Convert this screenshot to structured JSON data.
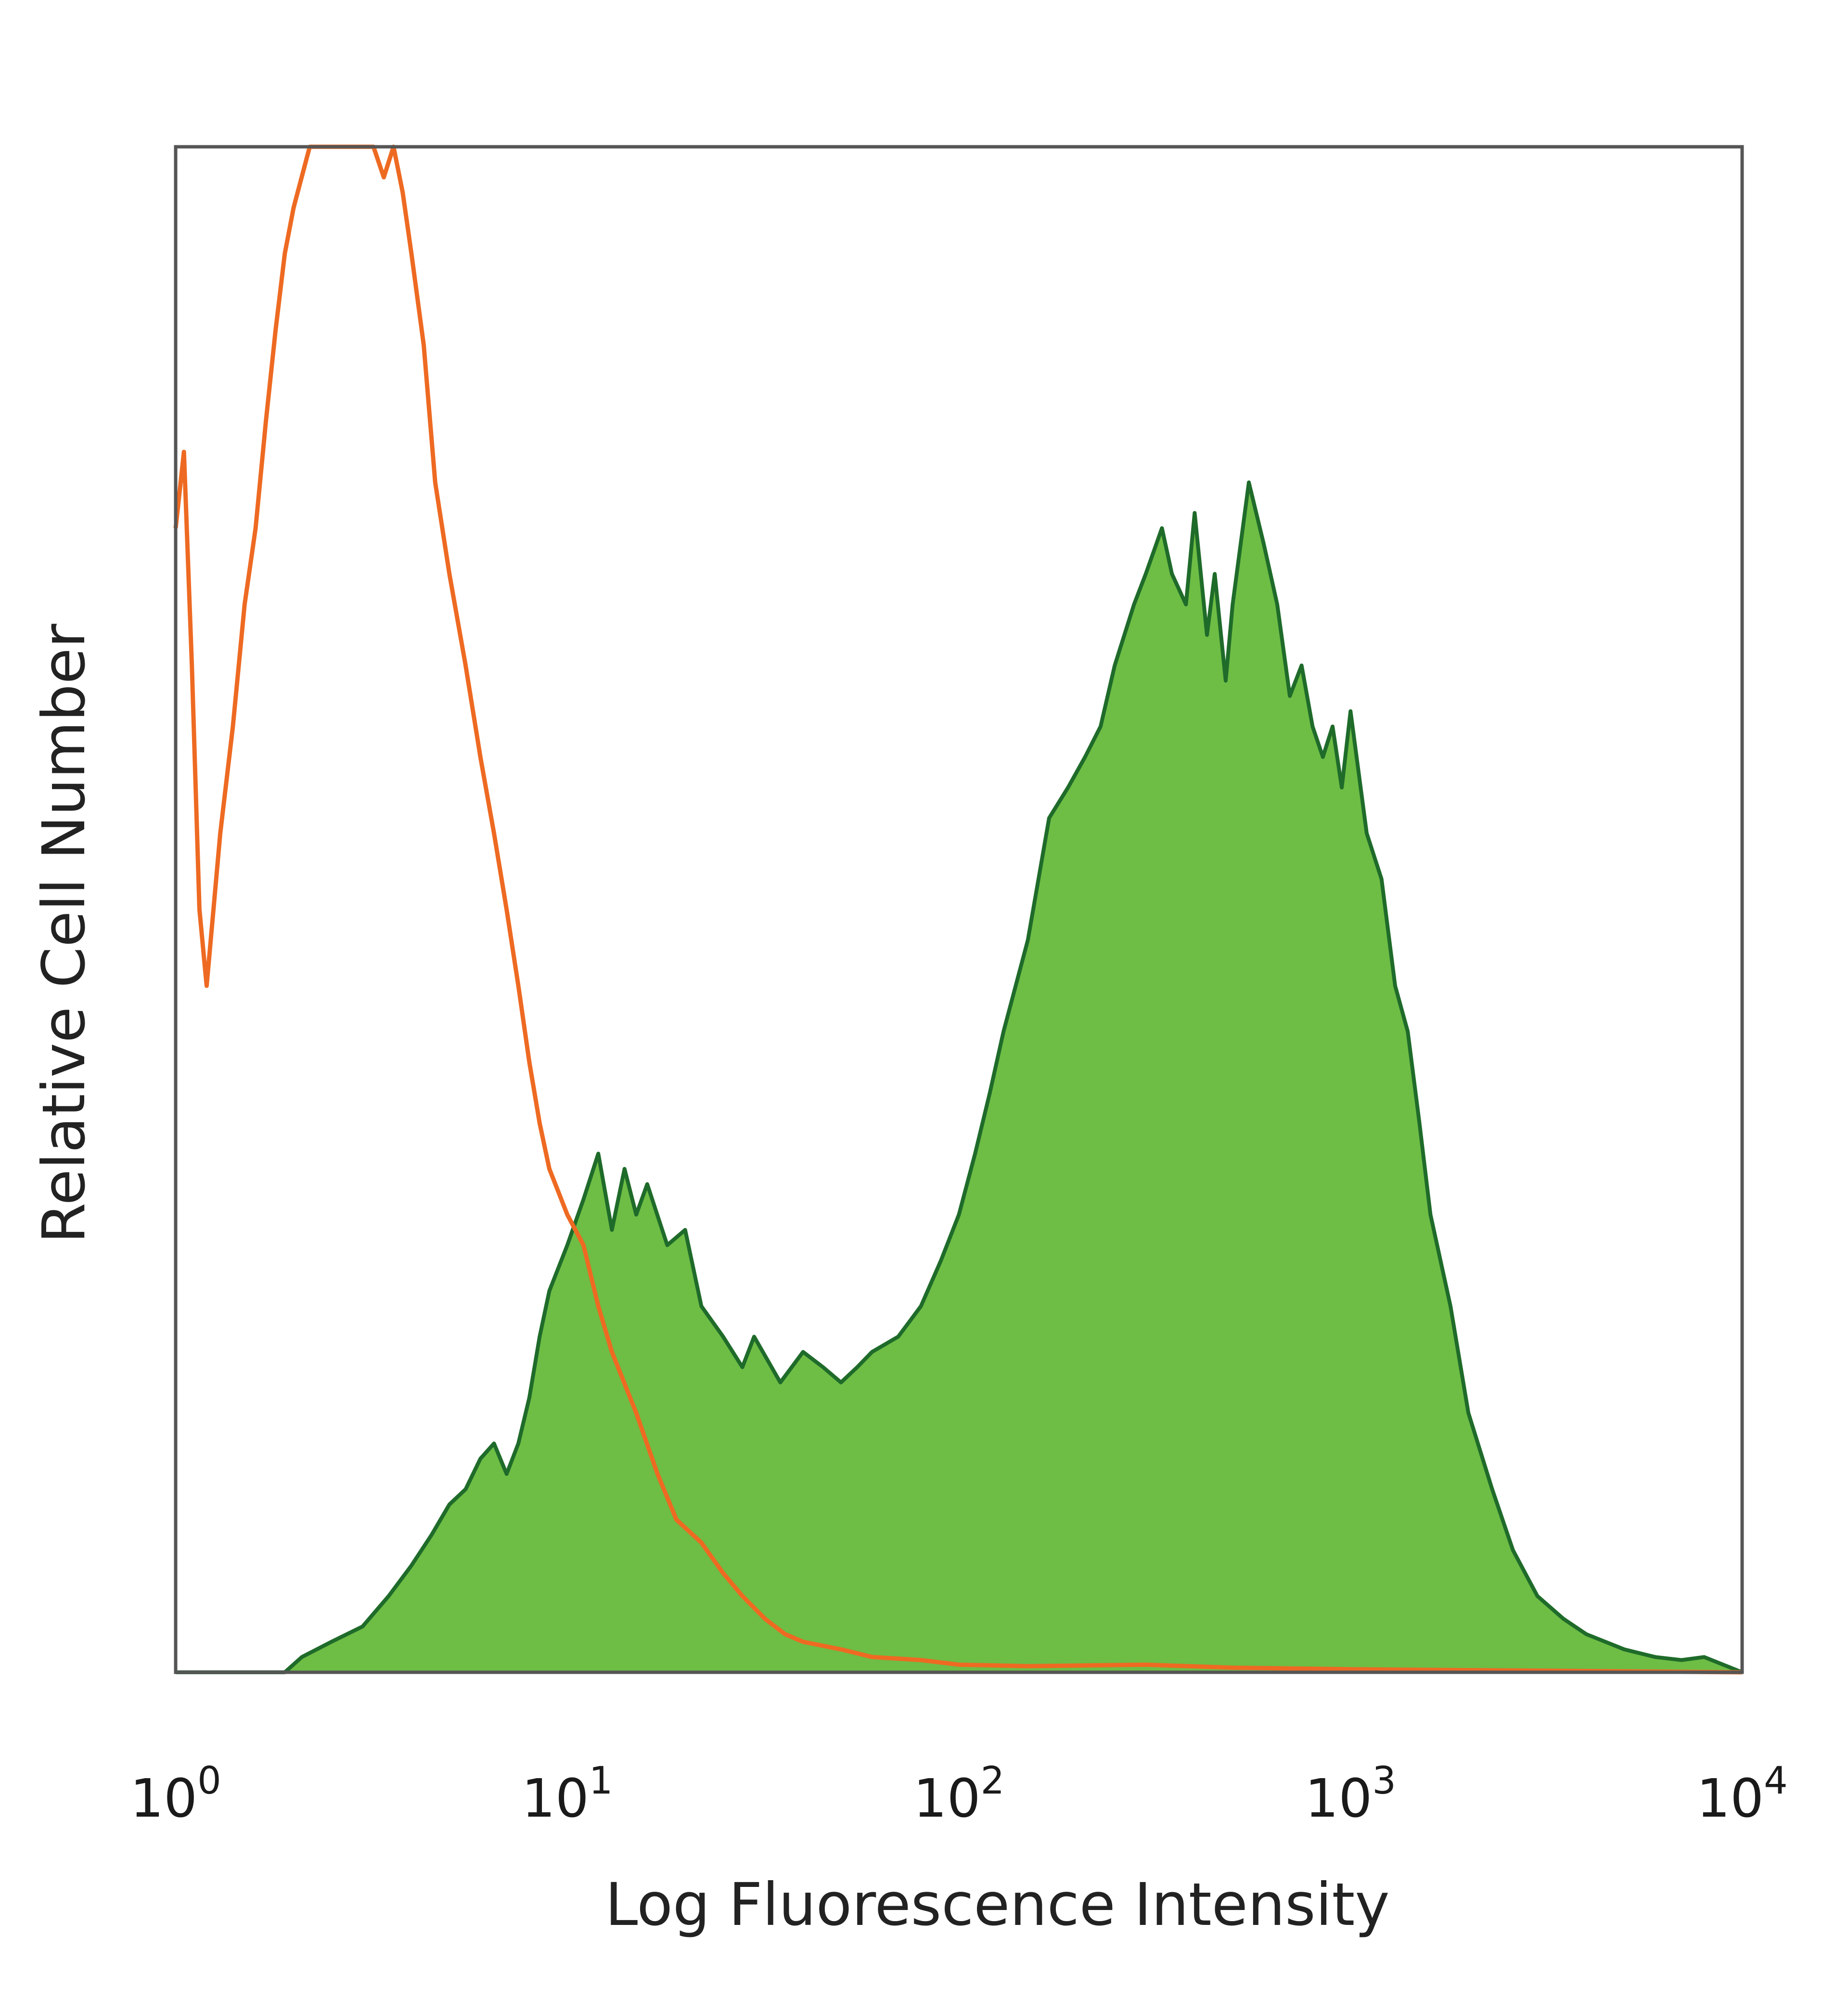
{
  "chart_data": {
    "type": "area",
    "title": "",
    "xlabel": "Log Fluorescence Intensity",
    "ylabel": "Relative Cell Number",
    "x_scale": "log",
    "xlim": [
      1,
      10000
    ],
    "ylim": [
      0,
      1
    ],
    "grid": false,
    "legend": "none",
    "x_ticks": [
      {
        "base": "10",
        "exp": "0",
        "value": 1
      },
      {
        "base": "10",
        "exp": "1",
        "value": 10
      },
      {
        "base": "10",
        "exp": "2",
        "value": 100
      },
      {
        "base": "10",
        "exp": "3",
        "value": 1000
      },
      {
        "base": "10",
        "exp": "4",
        "value": 10000
      }
    ],
    "series": [
      {
        "style": "outline",
        "color": "#ee6a22",
        "x": [
          1.0,
          1.05,
          1.1,
          1.15,
          1.2,
          1.3,
          1.4,
          1.5,
          1.6,
          1.7,
          1.8,
          1.9,
          2.0,
          2.2,
          2.4,
          2.6,
          2.8,
          3.0,
          3.2,
          3.4,
          3.6,
          3.8,
          4.0,
          4.3,
          4.6,
          5.0,
          5.5,
          6.0,
          6.5,
          7.0,
          7.5,
          8.0,
          8.5,
          9.0,
          10.0,
          11.0,
          12.0,
          13.0,
          15.0,
          17.0,
          19.0,
          22.0,
          25.0,
          28.0,
          32.0,
          36.0,
          40.0,
          50.0,
          60.0,
          80.0,
          100.0,
          150.0,
          300.0,
          500.0,
          1000.0,
          10000.0
        ],
        "values": [
          0.75,
          0.8,
          0.66,
          0.5,
          0.45,
          0.55,
          0.62,
          0.7,
          0.75,
          0.82,
          0.88,
          0.93,
          0.96,
          1.0,
          1.0,
          1.0,
          1.0,
          1.0,
          1.0,
          0.98,
          1.0,
          0.97,
          0.93,
          0.87,
          0.78,
          0.72,
          0.66,
          0.6,
          0.55,
          0.5,
          0.45,
          0.4,
          0.36,
          0.33,
          0.3,
          0.28,
          0.24,
          0.21,
          0.17,
          0.13,
          0.1,
          0.085,
          0.065,
          0.05,
          0.035,
          0.025,
          0.02,
          0.015,
          0.01,
          0.008,
          0.005,
          0.004,
          0.005,
          0.003,
          0.002,
          0.0
        ]
      },
      {
        "style": "filled",
        "color": "#6ebd45",
        "x": [
          1.0,
          1.5,
          1.9,
          2.1,
          2.5,
          3.0,
          3.5,
          4.0,
          4.5,
          5.0,
          5.5,
          6.0,
          6.5,
          7.0,
          7.5,
          8.0,
          8.5,
          9.0,
          10.0,
          11.0,
          12.0,
          13.0,
          14.0,
          15.0,
          16.0,
          18.0,
          20.0,
          22.0,
          25.0,
          28.0,
          30.0,
          35.0,
          40.0,
          45.0,
          50.0,
          55.0,
          60.0,
          70.0,
          80.0,
          90.0,
          100.0,
          110.0,
          120.0,
          130.0,
          150.0,
          170.0,
          190.0,
          210.0,
          230.0,
          250.0,
          280.0,
          300.0,
          330.0,
          350.0,
          380.0,
          400.0,
          430.0,
          450.0,
          480.0,
          500.0,
          550.0,
          600.0,
          650.0,
          700.0,
          750.0,
          800.0,
          850.0,
          900.0,
          950.0,
          1000.0,
          1100.0,
          1200.0,
          1300.0,
          1400.0,
          1500.0,
          1600.0,
          1800.0,
          2000.0,
          2300.0,
          2600.0,
          3000.0,
          3500.0,
          4000.0,
          5000.0,
          6000.0,
          7000.0,
          8000.0,
          10000.0
        ],
        "values": [
          0.0,
          0.0,
          0.0,
          0.01,
          0.02,
          0.03,
          0.05,
          0.07,
          0.09,
          0.11,
          0.12,
          0.14,
          0.15,
          0.13,
          0.15,
          0.18,
          0.22,
          0.25,
          0.28,
          0.31,
          0.34,
          0.29,
          0.33,
          0.3,
          0.32,
          0.28,
          0.29,
          0.24,
          0.22,
          0.2,
          0.22,
          0.19,
          0.21,
          0.2,
          0.19,
          0.2,
          0.21,
          0.22,
          0.24,
          0.27,
          0.3,
          0.34,
          0.38,
          0.42,
          0.48,
          0.56,
          0.58,
          0.6,
          0.62,
          0.66,
          0.7,
          0.72,
          0.75,
          0.72,
          0.7,
          0.76,
          0.68,
          0.72,
          0.65,
          0.7,
          0.78,
          0.74,
          0.7,
          0.64,
          0.66,
          0.62,
          0.6,
          0.62,
          0.58,
          0.63,
          0.55,
          0.52,
          0.45,
          0.42,
          0.36,
          0.3,
          0.24,
          0.17,
          0.12,
          0.08,
          0.05,
          0.035,
          0.025,
          0.015,
          0.01,
          0.008,
          0.01,
          0.0
        ]
      }
    ]
  }
}
